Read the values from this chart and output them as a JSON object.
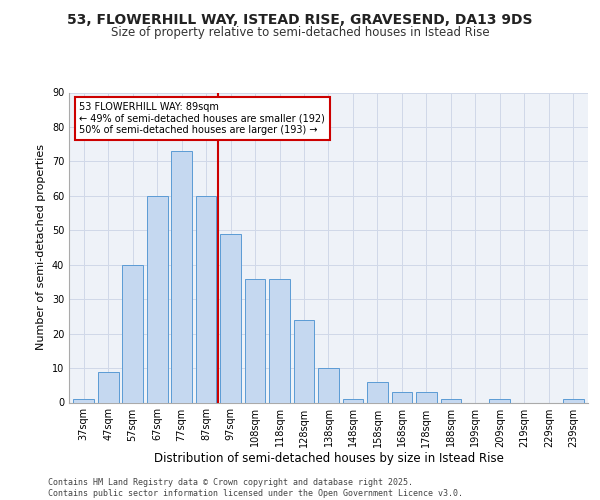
{
  "title_line1": "53, FLOWERHILL WAY, ISTEAD RISE, GRAVESEND, DA13 9DS",
  "title_line2": "Size of property relative to semi-detached houses in Istead Rise",
  "xlabel": "Distribution of semi-detached houses by size in Istead Rise",
  "ylabel": "Number of semi-detached properties",
  "bar_labels": [
    "37sqm",
    "47sqm",
    "57sqm",
    "67sqm",
    "77sqm",
    "87sqm",
    "97sqm",
    "108sqm",
    "118sqm",
    "128sqm",
    "138sqm",
    "148sqm",
    "158sqm",
    "168sqm",
    "178sqm",
    "188sqm",
    "199sqm",
    "209sqm",
    "219sqm",
    "229sqm",
    "239sqm"
  ],
  "bar_values": [
    1,
    9,
    40,
    60,
    73,
    60,
    49,
    36,
    36,
    24,
    10,
    1,
    6,
    3,
    3,
    1,
    0,
    1,
    0,
    0,
    1
  ],
  "bar_color": "#c5d8f0",
  "bar_edge_color": "#5b9bd5",
  "grid_color": "#d0d8e8",
  "background_color": "#eef2f8",
  "vline_color": "#cc0000",
  "vline_pos": 5.5,
  "annotation_text": "53 FLOWERHILL WAY: 89sqm\n← 49% of semi-detached houses are smaller (192)\n50% of semi-detached houses are larger (193) →",
  "annotation_box_color": "#ffffff",
  "annotation_box_edge_color": "#cc0000",
  "footer_text": "Contains HM Land Registry data © Crown copyright and database right 2025.\nContains public sector information licensed under the Open Government Licence v3.0.",
  "ylim": [
    0,
    90
  ],
  "yticks": [
    0,
    10,
    20,
    30,
    40,
    50,
    60,
    70,
    80,
    90
  ],
  "title1_fontsize": 10,
  "title2_fontsize": 8.5,
  "ylabel_fontsize": 8,
  "xlabel_fontsize": 8.5,
  "tick_fontsize": 7,
  "annot_fontsize": 7,
  "footer_fontsize": 6
}
